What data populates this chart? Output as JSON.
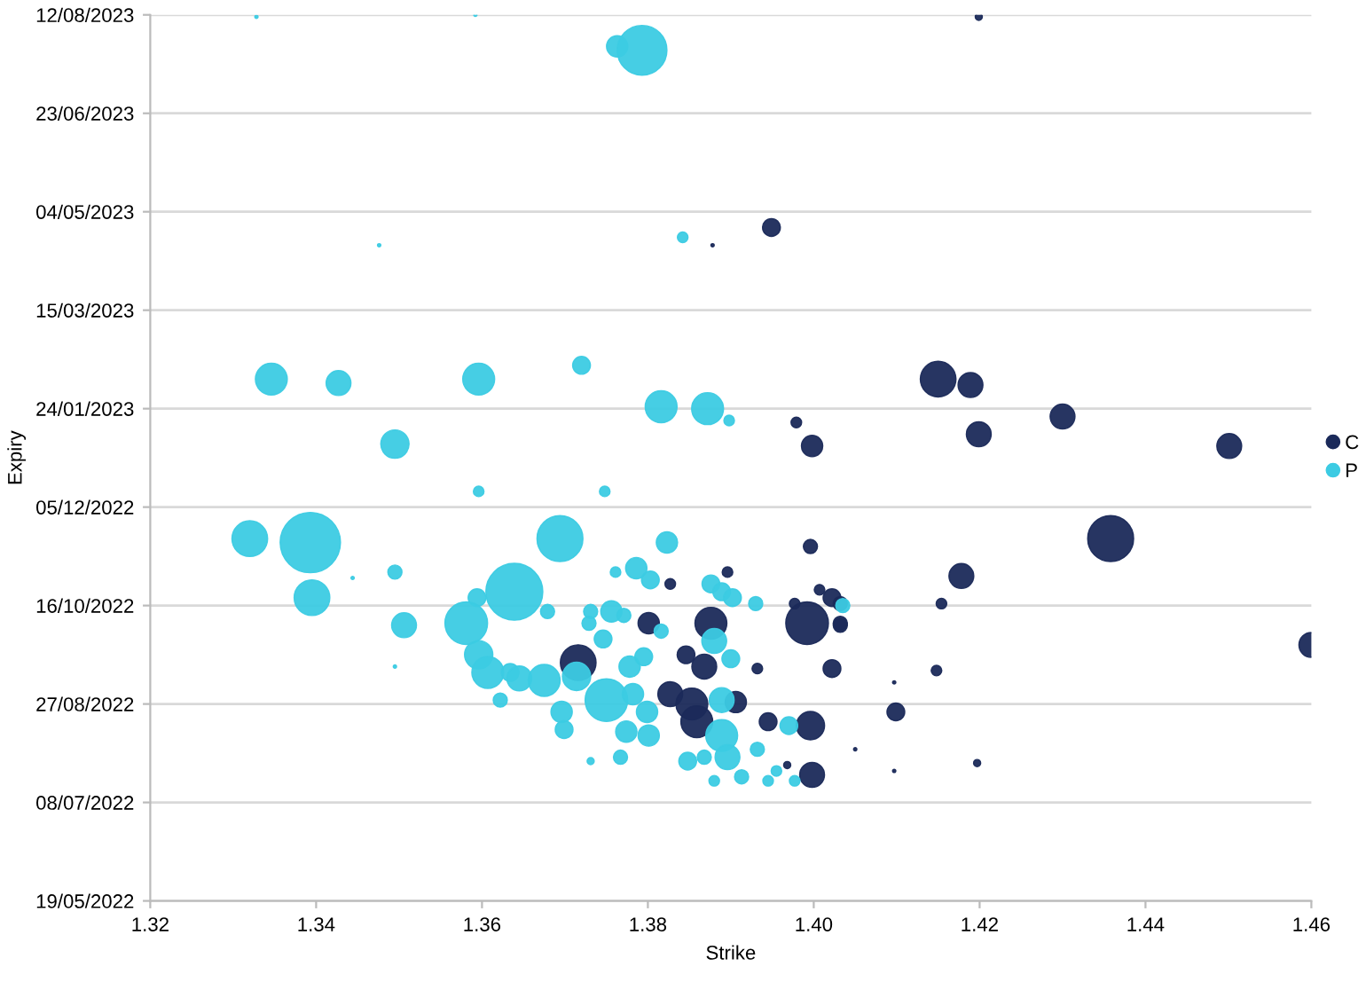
{
  "chart_data": {
    "type": "bubble",
    "orientation": "horizontal",
    "xlabel": "Strike",
    "ylabel": "Expiry",
    "xlim": [
      1.32,
      1.46
    ],
    "xticks": [
      {
        "value": 1.32,
        "label": "1.32"
      },
      {
        "value": 1.34,
        "label": "1.34"
      },
      {
        "value": 1.36,
        "label": "1.36"
      },
      {
        "value": 1.38,
        "label": "1.38"
      },
      {
        "value": 1.4,
        "label": "1.40"
      },
      {
        "value": 1.42,
        "label": "1.42"
      },
      {
        "value": 1.44,
        "label": "1.44"
      },
      {
        "value": 1.46,
        "label": "1.46"
      }
    ],
    "ylim": [
      "2022-05-19",
      "2023-08-12"
    ],
    "yticks": [
      {
        "value": "2022-05-19",
        "label": "19/05/2022"
      },
      {
        "value": "2022-07-08",
        "label": "08/07/2022"
      },
      {
        "value": "2022-08-27",
        "label": "27/08/2022"
      },
      {
        "value": "2022-10-16",
        "label": "16/10/2022"
      },
      {
        "value": "2022-12-05",
        "label": "05/12/2022"
      },
      {
        "value": "2023-01-24",
        "label": "24/01/2023"
      },
      {
        "value": "2023-03-15",
        "label": "15/03/2023"
      },
      {
        "value": "2023-05-04",
        "label": "04/05/2023"
      },
      {
        "value": "2023-06-23",
        "label": "23/06/2023"
      },
      {
        "value": "2023-08-12",
        "label": "12/08/2023"
      }
    ],
    "grid": "y",
    "legend": "right",
    "marker": "circle",
    "series": [
      {
        "name": "C",
        "color": "#1b2a5a",
        "values": [
          1.4199,
          1.3878,
          1.3949,
          1.3979,
          1.3998,
          1.415,
          1.4189,
          1.4199,
          1.43,
          1.4501,
          1.4358,
          1.3996,
          1.4178,
          1.4154,
          1.4032,
          1.4148,
          1.4099,
          1.4197,
          1.4097,
          1.405,
          1.46,
          1.4097,
          1.3827,
          1.3896,
          1.4007,
          1.4022,
          1.4032,
          1.3977,
          1.3801,
          1.3876,
          1.3992,
          1.4032,
          1.3716,
          1.3846,
          1.3868,
          1.3932,
          1.4022,
          1.3827,
          1.3853,
          1.3906,
          1.3945,
          1.3996,
          1.3998,
          1.3859,
          1.3968
        ],
        "x": [
          "2023-08-11",
          "2023-04-17",
          "2023-04-26",
          "2023-01-17",
          "2023-01-05",
          "2023-02-08",
          "2023-02-05",
          "2023-01-11",
          "2023-01-20",
          "2023-01-05",
          "2022-11-19",
          "2022-11-15",
          "2022-10-31",
          "2022-10-17",
          "2022-10-06",
          "2022-09-13",
          "2022-08-23",
          "2022-07-28",
          "2022-07-24",
          "2022-08-04",
          "2022-09-26",
          "2022-09-07",
          "2022-10-27",
          "2022-11-02",
          "2022-10-24",
          "2022-10-20",
          "2022-10-17",
          "2022-10-17",
          "2022-10-07",
          "2022-10-07",
          "2022-10-07",
          "2022-10-07",
          "2022-09-17",
          "2022-09-21",
          "2022-09-15",
          "2022-09-14",
          "2022-09-14",
          "2022-09-01",
          "2022-08-27",
          "2022-08-28",
          "2022-08-18",
          "2022-08-16",
          "2022-07-22",
          "2022-08-18",
          "2022-07-27"
        ],
        "sizes": [
          0.014,
          0.003,
          0.087,
          0.031,
          0.125,
          0.35,
          0.17,
          0.17,
          0.17,
          0.17,
          0.58,
          0.055,
          0.17,
          0.031,
          0.055,
          0.031,
          0.087,
          0.014,
          0.003,
          0.003,
          0.17,
          0.003,
          0.031,
          0.031,
          0.031,
          0.087,
          0.055,
          0.031,
          0.125,
          0.28,
          0.5,
          0.055,
          0.35,
          0.087,
          0.17,
          0.031,
          0.087,
          0.17,
          0.28,
          0.125,
          0.087,
          0.22,
          0.17,
          0.28,
          0.014
        ]
      },
      {
        "name": "P",
        "color": "#3ccbe3",
        "values": [
          1.3328,
          1.3592,
          1.3763,
          1.3793,
          1.3476,
          1.3842,
          1.3346,
          1.3427,
          1.3596,
          1.372,
          1.3816,
          1.3872,
          1.3898,
          1.3495,
          1.3596,
          1.3748,
          1.332,
          1.3393,
          1.3694,
          1.3823,
          1.3395,
          1.3495,
          1.3506,
          1.3444,
          1.3495,
          1.3761,
          1.3786,
          1.3803,
          1.3876,
          1.3889,
          1.3902,
          1.393,
          1.4035,
          1.3639,
          1.3594,
          1.3679,
          1.3581,
          1.3731,
          1.3756,
          1.3771,
          1.3729,
          1.3746,
          1.3816,
          1.388,
          1.3596,
          1.3607,
          1.3634,
          1.3645,
          1.3675,
          1.3714,
          1.3778,
          1.3795,
          1.39,
          1.3622,
          1.3696,
          1.3699,
          1.375,
          1.3782,
          1.3799,
          1.3889,
          1.397,
          1.3774,
          1.3801,
          1.3848,
          1.3868,
          1.3889,
          1.3896,
          1.3913,
          1.3932,
          1.3945,
          1.3955,
          1.3731,
          1.3767,
          1.388,
          1.3977
        ],
        "x": [
          "2023-08-11",
          "2023-08-12",
          "2023-07-27",
          "2023-07-25",
          "2023-04-17",
          "2023-04-21",
          "2023-02-08",
          "2023-02-06",
          "2023-02-08",
          "2023-02-15",
          "2023-01-25",
          "2023-01-24",
          "2023-01-18",
          "2023-01-06",
          "2022-12-13",
          "2022-12-13",
          "2022-11-19",
          "2022-11-17",
          "2022-11-19",
          "2022-11-17",
          "2022-10-20",
          "2022-11-02",
          "2022-10-06",
          "2022-10-30",
          "2022-09-15",
          "2022-11-02",
          "2022-11-04",
          "2022-10-29",
          "2022-10-27",
          "2022-10-23",
          "2022-10-20",
          "2022-10-17",
          "2022-10-16",
          "2022-10-23",
          "2022-10-20",
          "2022-10-13",
          "2022-10-07",
          "2022-10-13",
          "2022-10-13",
          "2022-10-11",
          "2022-10-07",
          "2022-09-29",
          "2022-10-03",
          "2022-09-28",
          "2022-09-21",
          "2022-09-12",
          "2022-09-12",
          "2022-09-09",
          "2022-09-08",
          "2022-09-10",
          "2022-09-15",
          "2022-09-20",
          "2022-09-19",
          "2022-08-29",
          "2022-08-23",
          "2022-08-14",
          "2022-08-29",
          "2022-09-01",
          "2022-08-23",
          "2022-08-29",
          "2022-08-16",
          "2022-08-13",
          "2022-08-11",
          "2022-07-29",
          "2022-07-31",
          "2022-08-11",
          "2022-07-31",
          "2022-07-21",
          "2022-08-04",
          "2022-07-19",
          "2022-07-24",
          "2022-07-29",
          "2022-07-31",
          "2022-07-19",
          "2022-07-19"
        ],
        "sizes": [
          0.003,
          0.003,
          0.125,
          0.68,
          0.003,
          0.031,
          0.28,
          0.17,
          0.28,
          0.087,
          0.28,
          0.28,
          0.031,
          0.22,
          0.031,
          0.031,
          0.35,
          1.0,
          0.58,
          0.125,
          0.35,
          0.055,
          0.17,
          0.003,
          0.003,
          0.031,
          0.125,
          0.087,
          0.087,
          0.087,
          0.087,
          0.055,
          0.055,
          0.89,
          0.087,
          0.055,
          0.5,
          0.055,
          0.125,
          0.055,
          0.055,
          0.087,
          0.055,
          0.17,
          0.22,
          0.28,
          0.087,
          0.17,
          0.28,
          0.22,
          0.125,
          0.087,
          0.087,
          0.055,
          0.125,
          0.087,
          0.5,
          0.125,
          0.125,
          0.17,
          0.087,
          0.125,
          0.125,
          0.087,
          0.055,
          0.28,
          0.17,
          0.055,
          0.055,
          0.031,
          0.031,
          0.014,
          0.055,
          0.031,
          0.031
        ]
      }
    ]
  }
}
